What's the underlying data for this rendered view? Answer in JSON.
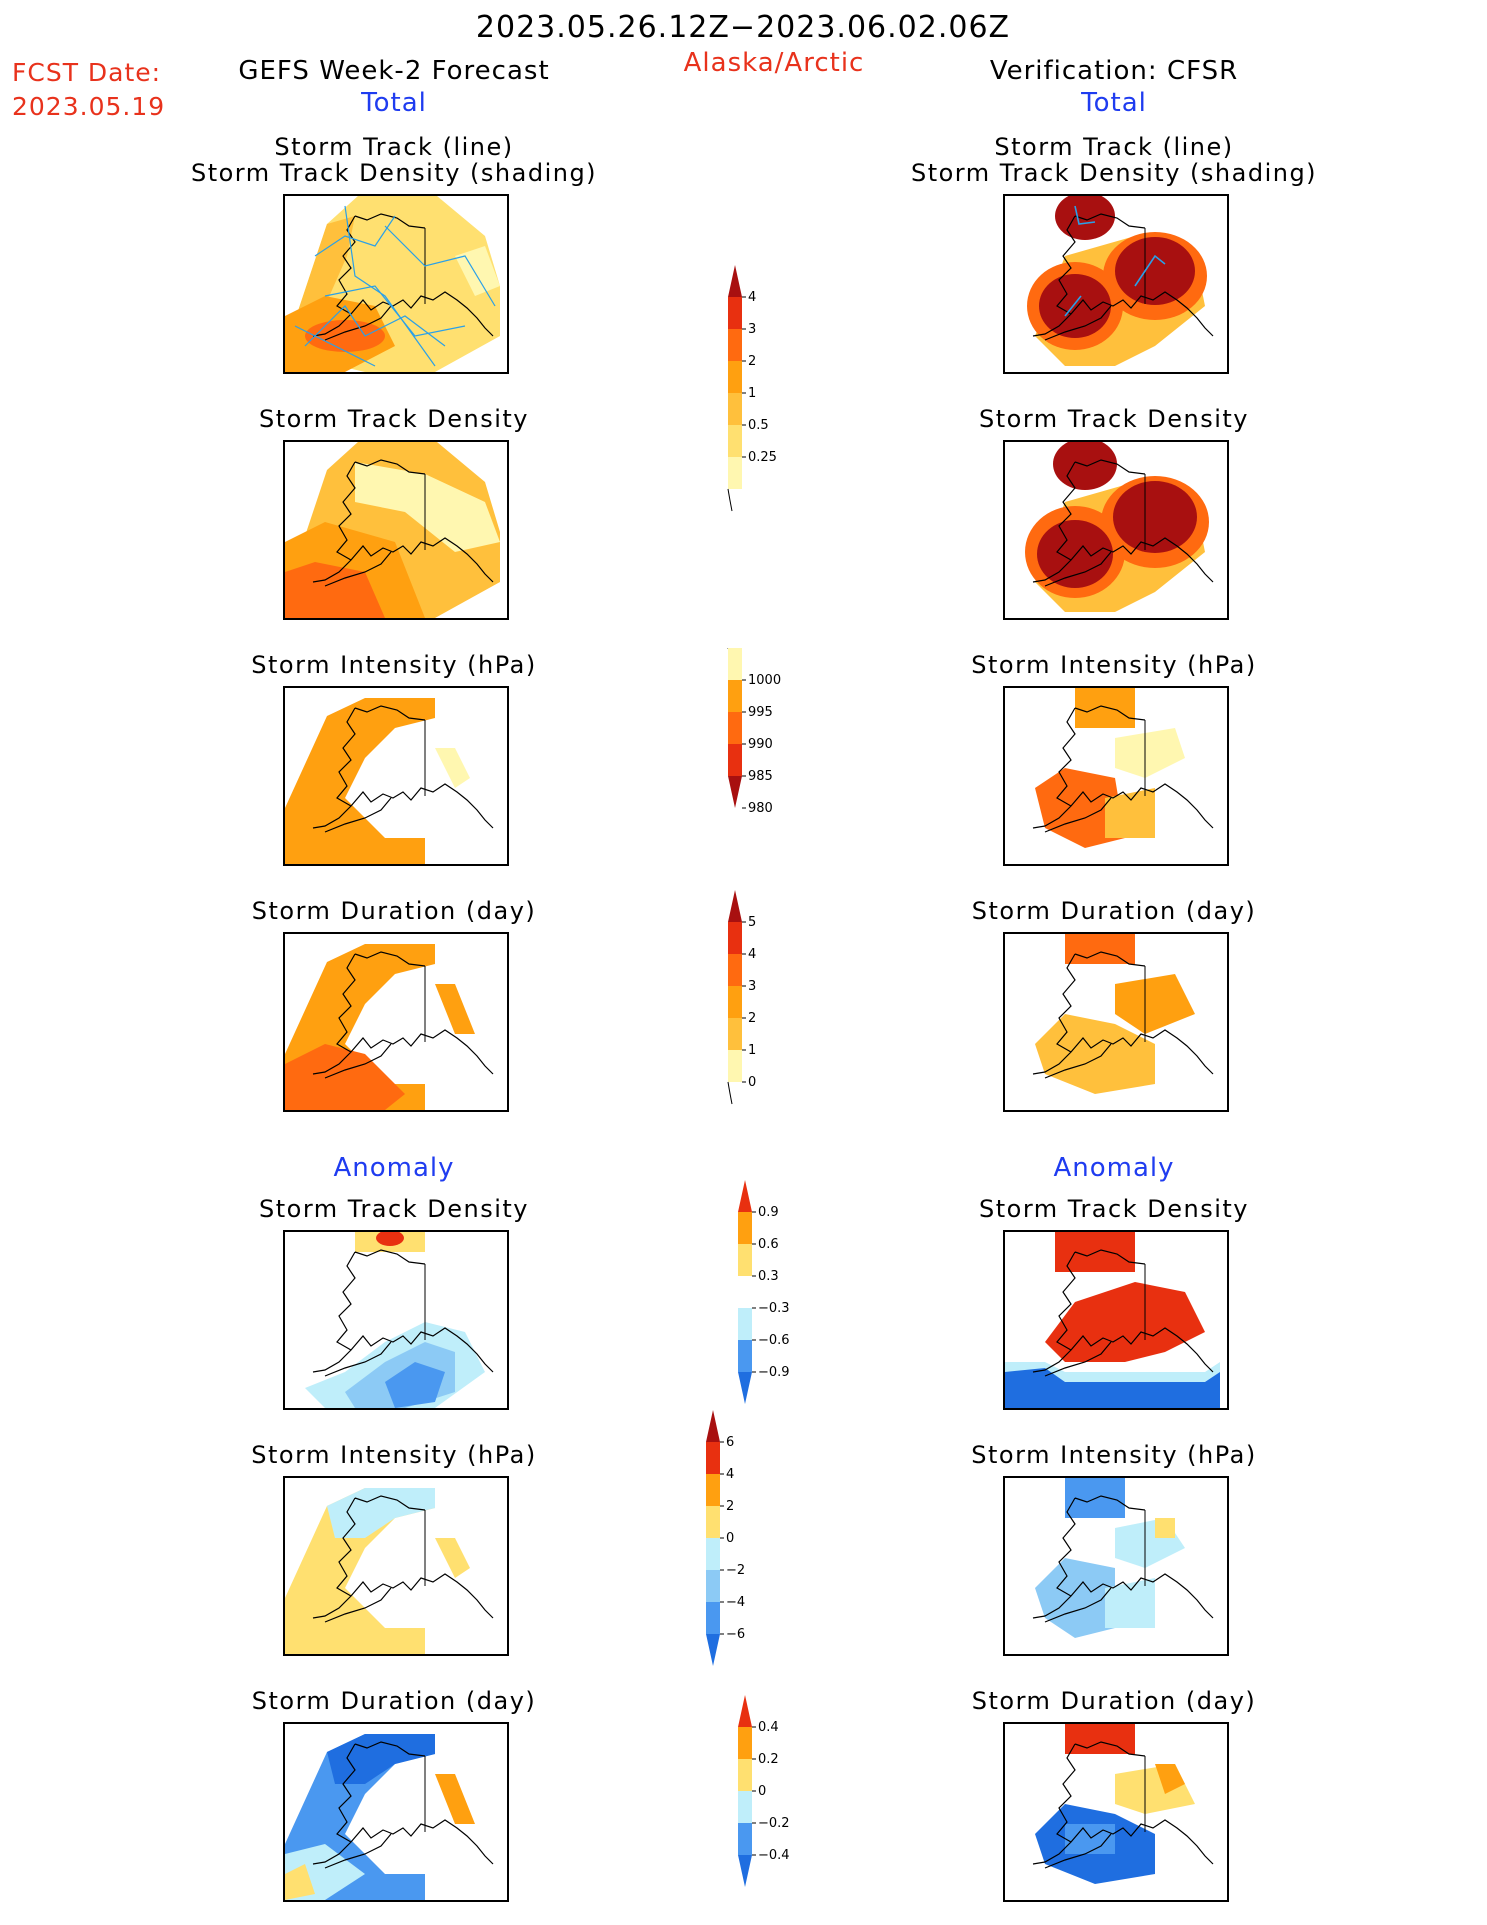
{
  "header": {
    "date_range": "2023.05.26.12Z−2023.06.02.06Z",
    "fcst_label": "FCST Date:",
    "fcst_value": "2023.05.19",
    "left_title": "GEFS Week-2 Forecast",
    "region": "Alaska/Arctic",
    "right_title": "Verification: CFSR"
  },
  "sections": {
    "total": "Total",
    "anomaly": "Anomaly"
  },
  "panel_titles": {
    "track": [
      "Storm Track (line)",
      "Storm Track Density (shading)"
    ],
    "density": "Storm Track Density",
    "intensity": "Storm Intensity (hPa)",
    "duration": "Storm Duration (day)"
  },
  "colors": {
    "pale": "#fff7b0",
    "yellow": "#ffe070",
    "orange_light": "#ffc03c",
    "orange": "#ffa010",
    "orange_dark": "#ff6a10",
    "red": "#e83010",
    "dark_red": "#a81010",
    "lightblue": "#bfeefa",
    "blue_light": "#8ccaf5",
    "blue": "#4a98f0",
    "blue_dark": "#1f6ee0",
    "track_line": "#2aa0e8"
  },
  "chart_data": [
    {
      "type": "colorbar",
      "name": "storm track density",
      "ticks": [
        "0.25",
        "0.5",
        "1",
        "2",
        "3",
        "4"
      ],
      "colors": [
        "#fff7b0",
        "#ffe070",
        "#ffc03c",
        "#ffa010",
        "#ff6a10",
        "#e83010",
        "#a81010"
      ],
      "extend": "both-triangle-top"
    },
    {
      "type": "colorbar",
      "name": "storm intensity (hPa)",
      "ticks": [
        "1000",
        "995",
        "990",
        "985",
        "980"
      ],
      "colors": [
        "#fff7b0",
        "#ffa010",
        "#ff6a10",
        "#e83010",
        "#a81010"
      ],
      "extend": "triangle-bottom"
    },
    {
      "type": "colorbar",
      "name": "storm duration (day)",
      "ticks": [
        "0",
        "1",
        "2",
        "3",
        "4",
        "5"
      ],
      "colors": [
        "#fff7b0",
        "#ffc03c",
        "#ffa010",
        "#ff6a10",
        "#e83010",
        "#a81010"
      ],
      "extend": "triangle-top"
    },
    {
      "type": "colorbar",
      "name": "storm track density anomaly",
      "ticks": [
        "0.9",
        "0.6",
        "0.3",
        "−0.3",
        "−0.6",
        "−0.9"
      ],
      "colors": [
        "#e83010",
        "#ffa010",
        "#ffe070",
        "#ffffff",
        "#bfeefa",
        "#4a98f0",
        "#1f6ee0"
      ],
      "extend": "both"
    },
    {
      "type": "colorbar",
      "name": "storm intensity anomaly (hPa)",
      "ticks": [
        "6",
        "4",
        "2",
        "0",
        "−2",
        "−4",
        "−6"
      ],
      "colors": [
        "#a81010",
        "#e83010",
        "#ffa010",
        "#ffe070",
        "#bfeefa",
        "#8ccaf5",
        "#4a98f0",
        "#1f6ee0"
      ],
      "extend": "both"
    },
    {
      "type": "colorbar",
      "name": "storm duration anomaly (day)",
      "ticks": [
        "0.4",
        "0.2",
        "0",
        "−0.2",
        "−0.4"
      ],
      "colors": [
        "#e83010",
        "#ffa010",
        "#ffe070",
        "#bfeefa",
        "#4a98f0",
        "#1f6ee0"
      ],
      "extend": "both"
    },
    {
      "type": "heatmap",
      "name": "map panels",
      "rows": [
        "track",
        "density",
        "intensity",
        "duration",
        "density anomaly",
        "intensity anomaly",
        "duration anomaly"
      ],
      "columns": [
        "GEFS Week-2 Forecast",
        "Verification: CFSR"
      ]
    }
  ]
}
